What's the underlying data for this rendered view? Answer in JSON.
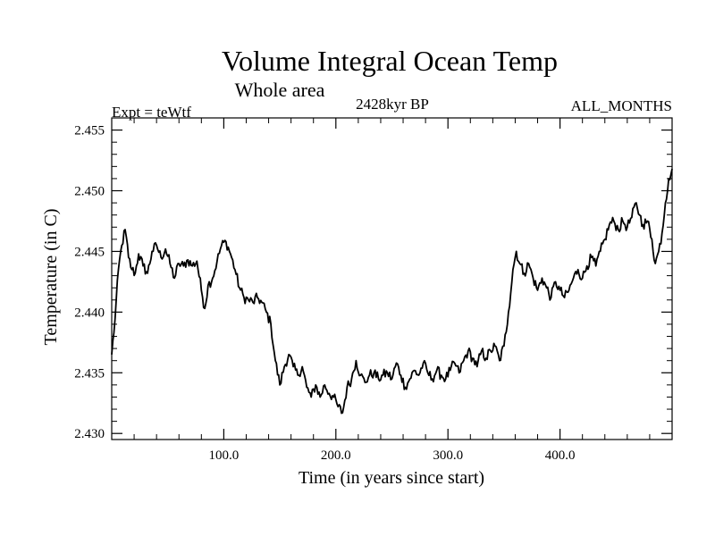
{
  "chart_data": {
    "type": "line",
    "title": "Volume Integral Ocean Temp",
    "subtitle": "Whole area",
    "left_label": "Expt = teWtf",
    "center_label": "2428kyr BP",
    "right_label": "ALL_MONTHS",
    "xlabel": "Time (in years since start)",
    "ylabel": "Temperature (in C)",
    "xlim": [
      0,
      500
    ],
    "ylim": [
      2.4295,
      2.456
    ],
    "x_ticks": [
      100,
      200,
      300,
      400
    ],
    "x_tick_labels": [
      "100.0",
      "200.0",
      "300.0",
      "400.0"
    ],
    "y_ticks": [
      2.43,
      2.435,
      2.44,
      2.445,
      2.45,
      2.455
    ],
    "y_tick_labels": [
      "2.430",
      "2.435",
      "2.440",
      "2.445",
      "2.450",
      "2.455"
    ],
    "grid": false,
    "series": [
      {
        "name": "Volume Integral Ocean Temp",
        "color": "#000000",
        "anchors": [
          [
            0,
            2.4365
          ],
          [
            3,
            2.4395
          ],
          [
            6,
            2.4435
          ],
          [
            9,
            2.4455
          ],
          [
            12,
            2.4468
          ],
          [
            15,
            2.4445
          ],
          [
            18,
            2.4435
          ],
          [
            21,
            2.4432
          ],
          [
            24,
            2.4448
          ],
          [
            28,
            2.4438
          ],
          [
            32,
            2.4432
          ],
          [
            36,
            2.445
          ],
          [
            40,
            2.4455
          ],
          [
            44,
            2.4445
          ],
          [
            48,
            2.4452
          ],
          [
            52,
            2.444
          ],
          [
            56,
            2.4428
          ],
          [
            60,
            2.444
          ],
          [
            64,
            2.4438
          ],
          [
            68,
            2.4443
          ],
          [
            72,
            2.4438
          ],
          [
            76,
            2.4442
          ],
          [
            80,
            2.4418
          ],
          [
            83,
            2.4403
          ],
          [
            86,
            2.4422
          ],
          [
            90,
            2.4428
          ],
          [
            94,
            2.4442
          ],
          [
            98,
            2.4455
          ],
          [
            102,
            2.4458
          ],
          [
            106,
            2.4448
          ],
          [
            110,
            2.4435
          ],
          [
            114,
            2.442
          ],
          [
            118,
            2.4412
          ],
          [
            122,
            2.441
          ],
          [
            126,
            2.4408
          ],
          [
            130,
            2.4412
          ],
          [
            134,
            2.4408
          ],
          [
            138,
            2.44
          ],
          [
            142,
            2.439
          ],
          [
            146,
            2.436
          ],
          [
            150,
            2.434
          ],
          [
            154,
            2.4355
          ],
          [
            158,
            2.4365
          ],
          [
            162,
            2.4355
          ],
          [
            166,
            2.4348
          ],
          [
            170,
            2.4355
          ],
          [
            174,
            2.4338
          ],
          [
            178,
            2.433
          ],
          [
            182,
            2.434
          ],
          [
            186,
            2.433
          ],
          [
            190,
            2.434
          ],
          [
            194,
            2.4333
          ],
          [
            198,
            2.433
          ],
          [
            202,
            2.4322
          ],
          [
            206,
            2.4317
          ],
          [
            210,
            2.4338
          ],
          [
            214,
            2.4345
          ],
          [
            218,
            2.436
          ],
          [
            222,
            2.4348
          ],
          [
            226,
            2.4342
          ],
          [
            230,
            2.4348
          ],
          [
            234,
            2.435
          ],
          [
            238,
            2.4345
          ],
          [
            242,
            2.4348
          ],
          [
            246,
            2.435
          ],
          [
            250,
            2.4345
          ],
          [
            254,
            2.4358
          ],
          [
            258,
            2.4348
          ],
          [
            262,
            2.4338
          ],
          [
            266,
            2.4345
          ],
          [
            270,
            2.4352
          ],
          [
            274,
            2.4348
          ],
          [
            278,
            2.4358
          ],
          [
            282,
            2.435
          ],
          [
            286,
            2.4345
          ],
          [
            290,
            2.4352
          ],
          [
            294,
            2.4348
          ],
          [
            298,
            2.4345
          ],
          [
            302,
            2.4352
          ],
          [
            306,
            2.4358
          ],
          [
            310,
            2.435
          ],
          [
            314,
            2.436
          ],
          [
            318,
            2.4368
          ],
          [
            322,
            2.4362
          ],
          [
            326,
            2.4355
          ],
          [
            330,
            2.4368
          ],
          [
            334,
            2.4362
          ],
          [
            338,
            2.4368
          ],
          [
            342,
            2.4372
          ],
          [
            346,
            2.436
          ],
          [
            350,
            2.4372
          ],
          [
            354,
            2.44
          ],
          [
            358,
            2.4435
          ],
          [
            361,
            2.445
          ],
          [
            364,
            2.444
          ],
          [
            368,
            2.4432
          ],
          [
            372,
            2.444
          ],
          [
            376,
            2.4428
          ],
          [
            380,
            2.4418
          ],
          [
            384,
            2.4428
          ],
          [
            388,
            2.442
          ],
          [
            392,
            2.4412
          ],
          [
            396,
            2.4425
          ],
          [
            400,
            2.4418
          ],
          [
            404,
            2.4412
          ],
          [
            408,
            2.4418
          ],
          [
            412,
            2.4428
          ],
          [
            416,
            2.4435
          ],
          [
            420,
            2.4428
          ],
          [
            424,
            2.4438
          ],
          [
            428,
            2.4445
          ],
          [
            432,
            2.4438
          ],
          [
            436,
            2.445
          ],
          [
            440,
            2.446
          ],
          [
            444,
            2.4472
          ],
          [
            448,
            2.4475
          ],
          [
            452,
            2.4468
          ],
          [
            456,
            2.4475
          ],
          [
            460,
            2.447
          ],
          [
            464,
            2.4478
          ],
          [
            468,
            2.449
          ],
          [
            471,
            2.448
          ],
          [
            474,
            2.4472
          ],
          [
            478,
            2.4475
          ],
          [
            482,
            2.446
          ],
          [
            485,
            2.444
          ],
          [
            488,
            2.445
          ],
          [
            491,
            2.4465
          ],
          [
            494,
            2.449
          ],
          [
            497,
            2.451
          ],
          [
            500,
            2.4518
          ]
        ]
      }
    ]
  }
}
